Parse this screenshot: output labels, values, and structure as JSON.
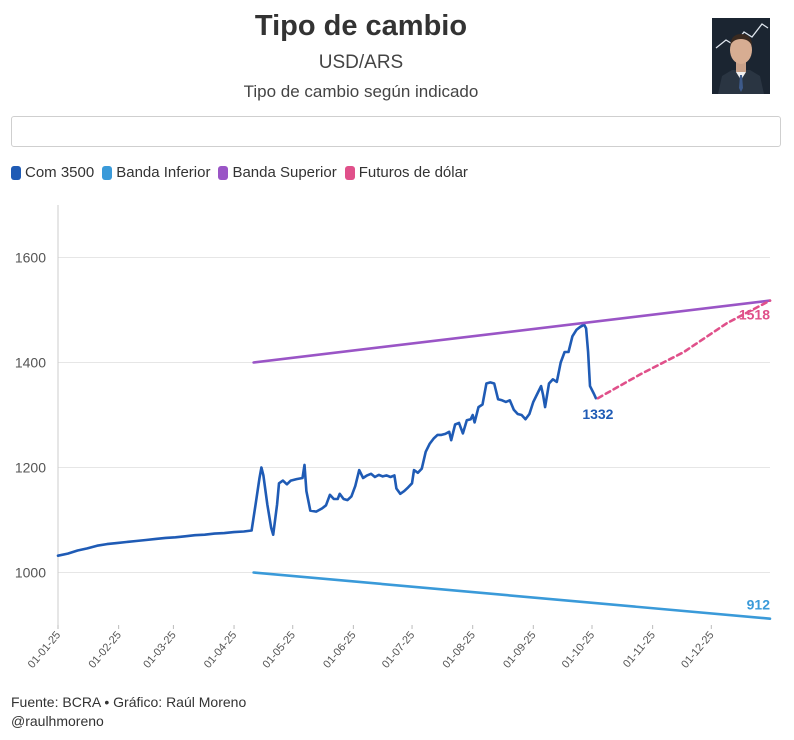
{
  "header": {
    "title": "Tipo de cambio",
    "subtitle": "USD/ARS",
    "note": "Tipo de cambio según indicado"
  },
  "search": {
    "value": "",
    "placeholder": ""
  },
  "footer": {
    "source": "Fuente: BCRA • Gráfico: Raúl Moreno",
    "handle": "@raulhmoreno"
  },
  "colors": {
    "com3500": "#1f5bb5",
    "banda_inferior": "#3a9ad9",
    "banda_superior": "#9a55c6",
    "futuros": "#e0508a",
    "grid": "#e6e6e6"
  },
  "chart_data": {
    "type": "line",
    "title": "Tipo de cambio",
    "subtitle": "USD/ARS",
    "xlabel": "",
    "ylabel": "",
    "ylim": [
      900,
      1700
    ],
    "yticks": [
      1000,
      1200,
      1400,
      1600
    ],
    "x_range_days": [
      0,
      364
    ],
    "xtick_labels": [
      "01-01-25",
      "01-02-25",
      "01-03-25",
      "01-04-25",
      "01-05-25",
      "01-06-25",
      "01-07-25",
      "01-08-25",
      "01-09-25",
      "01-10-25",
      "01-11-25",
      "01-12-25"
    ],
    "xtick_days": [
      0,
      31,
      59,
      90,
      120,
      151,
      181,
      212,
      243,
      273,
      304,
      334
    ],
    "legend": [
      "Com 3500",
      "Banda Inferior",
      "Banda Superior",
      "Futuros de dólar"
    ],
    "series": [
      {
        "name": "Com 3500",
        "style": "solid",
        "end_label": "1332",
        "points": [
          [
            0,
            1032
          ],
          [
            5,
            1036
          ],
          [
            10,
            1042
          ],
          [
            15,
            1046
          ],
          [
            20,
            1051
          ],
          [
            25,
            1054
          ],
          [
            30,
            1056
          ],
          [
            35,
            1058
          ],
          [
            40,
            1060
          ],
          [
            45,
            1062
          ],
          [
            50,
            1064
          ],
          [
            55,
            1066
          ],
          [
            60,
            1067
          ],
          [
            65,
            1069
          ],
          [
            70,
            1071
          ],
          [
            75,
            1072
          ],
          [
            80,
            1074
          ],
          [
            85,
            1075
          ],
          [
            90,
            1077
          ],
          [
            95,
            1078
          ],
          [
            99,
            1080
          ],
          [
            101,
            1130
          ],
          [
            103,
            1180
          ],
          [
            104,
            1200
          ],
          [
            105,
            1185
          ],
          [
            107,
            1130
          ],
          [
            109,
            1085
          ],
          [
            110,
            1072
          ],
          [
            112,
            1130
          ],
          [
            113,
            1170
          ],
          [
            115,
            1175
          ],
          [
            117,
            1168
          ],
          [
            119,
            1175
          ],
          [
            122,
            1178
          ],
          [
            125,
            1180
          ],
          [
            126,
            1205
          ],
          [
            127,
            1155
          ],
          [
            129,
            1118
          ],
          [
            132,
            1116
          ],
          [
            135,
            1122
          ],
          [
            137,
            1128
          ],
          [
            139,
            1148
          ],
          [
            141,
            1140
          ],
          [
            143,
            1140
          ],
          [
            144,
            1150
          ],
          [
            146,
            1140
          ],
          [
            148,
            1138
          ],
          [
            150,
            1145
          ],
          [
            152,
            1165
          ],
          [
            154,
            1195
          ],
          [
            156,
            1180
          ],
          [
            158,
            1185
          ],
          [
            160,
            1188
          ],
          [
            162,
            1182
          ],
          [
            164,
            1186
          ],
          [
            166,
            1183
          ],
          [
            168,
            1185
          ],
          [
            170,
            1182
          ],
          [
            172,
            1185
          ],
          [
            173,
            1160
          ],
          [
            175,
            1150
          ],
          [
            177,
            1155
          ],
          [
            179,
            1162
          ],
          [
            181,
            1170
          ],
          [
            182,
            1195
          ],
          [
            184,
            1190
          ],
          [
            186,
            1198
          ],
          [
            188,
            1230
          ],
          [
            190,
            1245
          ],
          [
            192,
            1255
          ],
          [
            194,
            1262
          ],
          [
            196,
            1262
          ],
          [
            198,
            1264
          ],
          [
            200,
            1268
          ],
          [
            201,
            1252
          ],
          [
            203,
            1282
          ],
          [
            205,
            1285
          ],
          [
            207,
            1265
          ],
          [
            209,
            1290
          ],
          [
            211,
            1292
          ],
          [
            212,
            1300
          ],
          [
            213,
            1286
          ],
          [
            215,
            1315
          ],
          [
            217,
            1320
          ],
          [
            219,
            1360
          ],
          [
            221,
            1362
          ],
          [
            223,
            1360
          ],
          [
            225,
            1330
          ],
          [
            227,
            1328
          ],
          [
            229,
            1325
          ],
          [
            231,
            1328
          ],
          [
            233,
            1310
          ],
          [
            235,
            1302
          ],
          [
            237,
            1300
          ],
          [
            239,
            1292
          ],
          [
            241,
            1302
          ],
          [
            243,
            1325
          ],
          [
            245,
            1340
          ],
          [
            247,
            1355
          ],
          [
            248,
            1338
          ],
          [
            249,
            1315
          ],
          [
            251,
            1360
          ],
          [
            253,
            1368
          ],
          [
            255,
            1363
          ],
          [
            257,
            1400
          ],
          [
            259,
            1420
          ],
          [
            261,
            1420
          ],
          [
            263,
            1450
          ],
          [
            265,
            1462
          ],
          [
            267,
            1468
          ],
          [
            269,
            1472
          ],
          [
            270,
            1465
          ],
          [
            271,
            1420
          ],
          [
            272,
            1355
          ],
          [
            274,
            1340
          ],
          [
            275,
            1332
          ]
        ]
      },
      {
        "name": "Banda Inferior",
        "style": "solid",
        "end_label": "912",
        "points": [
          [
            100,
            1000
          ],
          [
            364,
            912
          ]
        ]
      },
      {
        "name": "Banda Superior",
        "style": "solid",
        "end_label": "",
        "points": [
          [
            100,
            1400
          ],
          [
            364,
            1518
          ]
        ]
      },
      {
        "name": "Futuros de dólar",
        "style": "dashed",
        "end_label": "1518",
        "points": [
          [
            276,
            1332
          ],
          [
            298,
            1378
          ],
          [
            320,
            1420
          ],
          [
            342,
            1475
          ],
          [
            364,
            1518
          ]
        ]
      }
    ]
  }
}
